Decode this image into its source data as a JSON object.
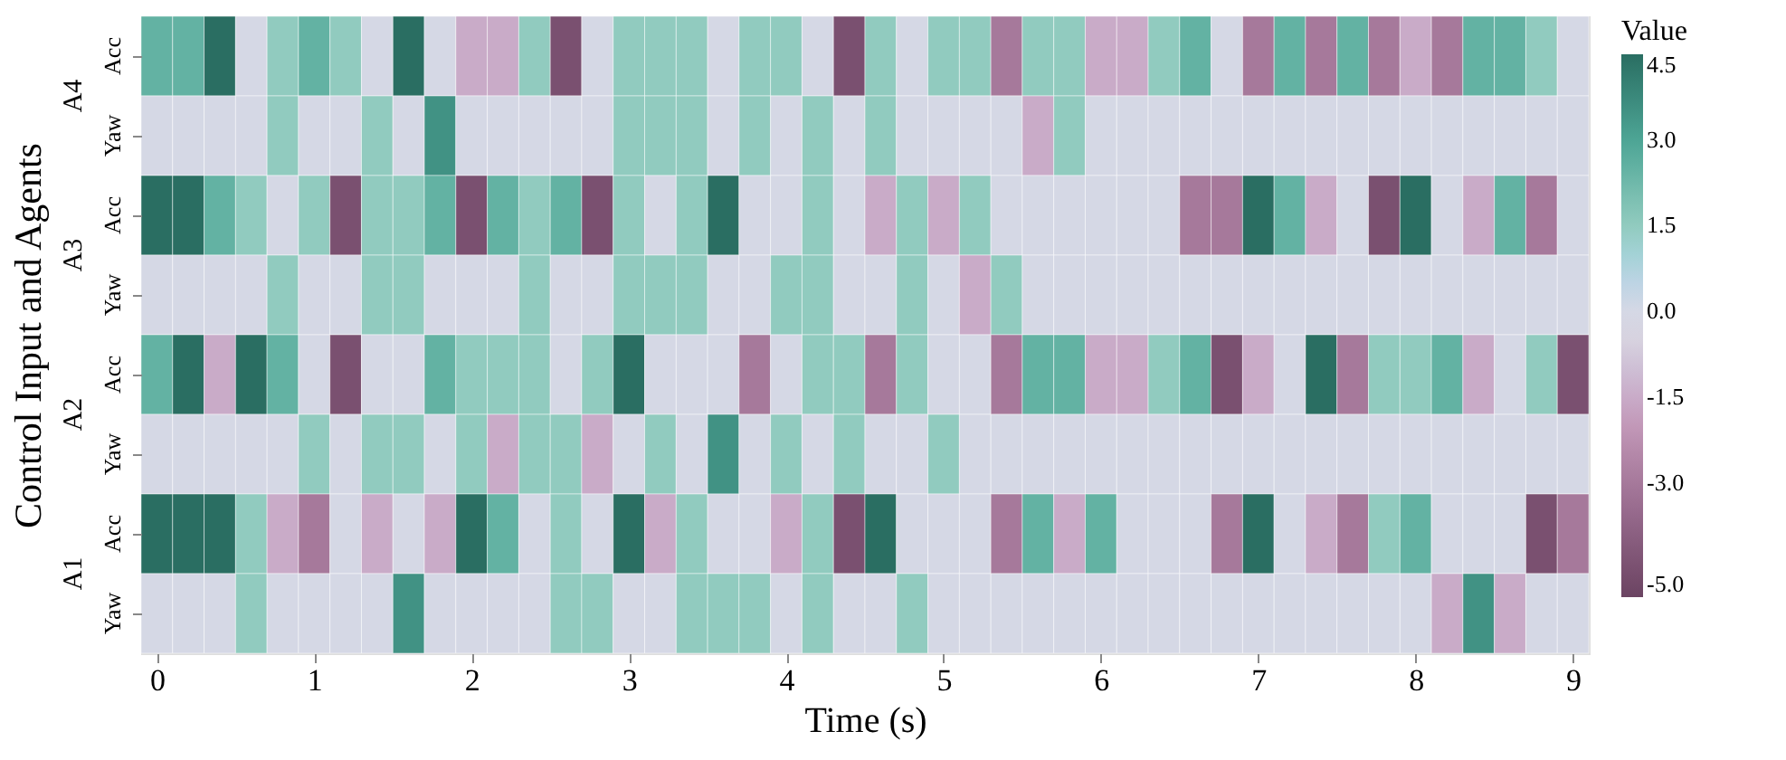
{
  "chart_data": {
    "type": "heatmap",
    "ylabel": "Control Input and Agents",
    "xlabel": "Time (s)",
    "y_categories": [
      "Acc",
      "Yaw",
      "Acc",
      "Yaw",
      "Acc",
      "Yaw",
      "Acc",
      "Yaw"
    ],
    "annotations": [
      "A4",
      "A3",
      "A2",
      "A1"
    ],
    "clabel": "Value",
    "clim": [
      -5,
      4.5
    ],
    "cticks": [
      {
        "value": 4.5,
        "label": "4.5"
      },
      {
        "value": 3,
        "label": "3.0"
      },
      {
        "value": 1.5,
        "label": "1.5"
      },
      {
        "value": 0,
        "label": "0.0"
      },
      {
        "value": -1.5,
        "label": "-1.5"
      },
      {
        "value": -3,
        "label": "-3.0"
      },
      {
        "value": -5,
        "label": "-5.0"
      }
    ],
    "xlim": [
      -0.1,
      9.1
    ],
    "xticks": [
      0,
      1,
      2,
      3,
      4,
      5,
      6,
      7,
      8,
      9
    ],
    "x": [
      0,
      0.2,
      0.4,
      0.6,
      0.8,
      1.0,
      1.2,
      1.4,
      1.6,
      1.8,
      2.0,
      2.2,
      2.4,
      2.6,
      2.8,
      3.0,
      3.2,
      3.4,
      3.6,
      3.8,
      4.0,
      4.2,
      4.4,
      4.6,
      4.8,
      5.0,
      5.2,
      5.4,
      5.6,
      5.8,
      6.0,
      6.2,
      6.4,
      6.6,
      6.8,
      7.0,
      7.2,
      7.4,
      7.6,
      7.8,
      8.0,
      8.2,
      8.4,
      8.6,
      8.8,
      9.0
    ],
    "cells": [
      [
        2.5,
        2.5,
        4.5,
        0,
        1.5,
        2.5,
        1.5,
        0,
        4.5,
        0,
        -1.5,
        -1.5,
        1.5,
        -4.5,
        0,
        1.5,
        1.5,
        1.5,
        0,
        1.5,
        1.5,
        0,
        -4.5,
        1.5,
        0,
        1.5,
        1.5,
        -3,
        1.5,
        1.5,
        -1.5,
        -1.5,
        1.5,
        2.5,
        0,
        -3,
        2.5,
        -3,
        2.5,
        -3,
        -1.5,
        -3,
        2.5,
        2.5,
        1.5,
        0
      ],
      [
        0,
        0,
        0,
        0,
        1.5,
        0,
        0,
        1.5,
        0,
        3.5,
        0,
        0,
        0,
        0,
        0,
        1.5,
        1.5,
        1.5,
        0,
        1.5,
        0,
        1.5,
        0,
        1.5,
        0,
        0,
        0,
        0,
        -1.5,
        1.5,
        0,
        0,
        0,
        0,
        0,
        0,
        0,
        0,
        0,
        0,
        0,
        0,
        0,
        0,
        0,
        0
      ],
      [
        4.5,
        4.5,
        2.5,
        1.5,
        0,
        1.5,
        -4.5,
        1.5,
        1.5,
        2.5,
        -4.5,
        2.5,
        1.5,
        2.5,
        -4.5,
        1.5,
        0,
        1.5,
        4.5,
        0,
        0,
        1.5,
        0,
        -1.5,
        1.5,
        -1.5,
        1.5,
        0,
        0,
        0,
        0,
        0,
        0,
        -3,
        -3,
        4.5,
        2.5,
        -1.5,
        0,
        -4.5,
        4.5,
        0,
        -1.5,
        2.5,
        -3,
        0
      ],
      [
        0,
        0,
        0,
        0,
        1.5,
        0,
        0,
        1.5,
        1.5,
        0,
        0,
        0,
        1.5,
        0,
        0,
        1.5,
        1.5,
        1.5,
        0,
        0,
        1.5,
        1.5,
        0,
        0,
        1.5,
        0,
        -1.5,
        1.5,
        0,
        0,
        0,
        0,
        0,
        0,
        0,
        0,
        0,
        0,
        0,
        0,
        0,
        0,
        0,
        0,
        0,
        0
      ],
      [
        2.5,
        4.5,
        -1.5,
        4.5,
        2.5,
        0,
        -4.5,
        0,
        0,
        2.5,
        1.5,
        1.5,
        1.5,
        0,
        1.5,
        4.5,
        0,
        0,
        0,
        -3,
        0,
        1.5,
        1.5,
        -3,
        1.5,
        0,
        0,
        -3,
        2.5,
        2.5,
        -1.5,
        -1.5,
        1.5,
        2.5,
        -4.5,
        -1.5,
        0,
        4.5,
        -3,
        1.5,
        1.5,
        2.5,
        -1.5,
        0,
        1.5,
        -4.5
      ],
      [
        0,
        0,
        0,
        0,
        0,
        1.5,
        0,
        1.5,
        1.5,
        0,
        1.5,
        -1.5,
        1.5,
        1.5,
        -1.5,
        0,
        1.5,
        0,
        3.5,
        0,
        1.5,
        0,
        1.5,
        0,
        0,
        1.5,
        0,
        0,
        0,
        0,
        0,
        0,
        0,
        0,
        0,
        0,
        0,
        0,
        0,
        0,
        0,
        0,
        0,
        0,
        0,
        0
      ],
      [
        4.5,
        4.5,
        4.5,
        1.5,
        -1.5,
        -3,
        0,
        -1.5,
        0,
        -1.5,
        4.5,
        2.5,
        0,
        1.5,
        0,
        4.5,
        -1.5,
        1.5,
        0,
        0,
        -1.5,
        1.5,
        -4.5,
        4.5,
        0,
        0,
        0,
        -3,
        2.5,
        -1.5,
        2.5,
        0,
        0,
        0,
        -3,
        4.5,
        0,
        -1.5,
        -3,
        1.5,
        2.5,
        0,
        0,
        0,
        -4.5,
        -3
      ],
      [
        0,
        0,
        0,
        1.5,
        0,
        0,
        0,
        0,
        3.5,
        0,
        0,
        0,
        0,
        1.5,
        1.5,
        0,
        0,
        1.5,
        1.5,
        1.5,
        0,
        1.5,
        0,
        0,
        1.5,
        0,
        0,
        0,
        0,
        0,
        0,
        0,
        0,
        0,
        0,
        0,
        0,
        0,
        0,
        0,
        0,
        -1.5,
        3.5,
        -1.5,
        0,
        0
      ]
    ]
  }
}
